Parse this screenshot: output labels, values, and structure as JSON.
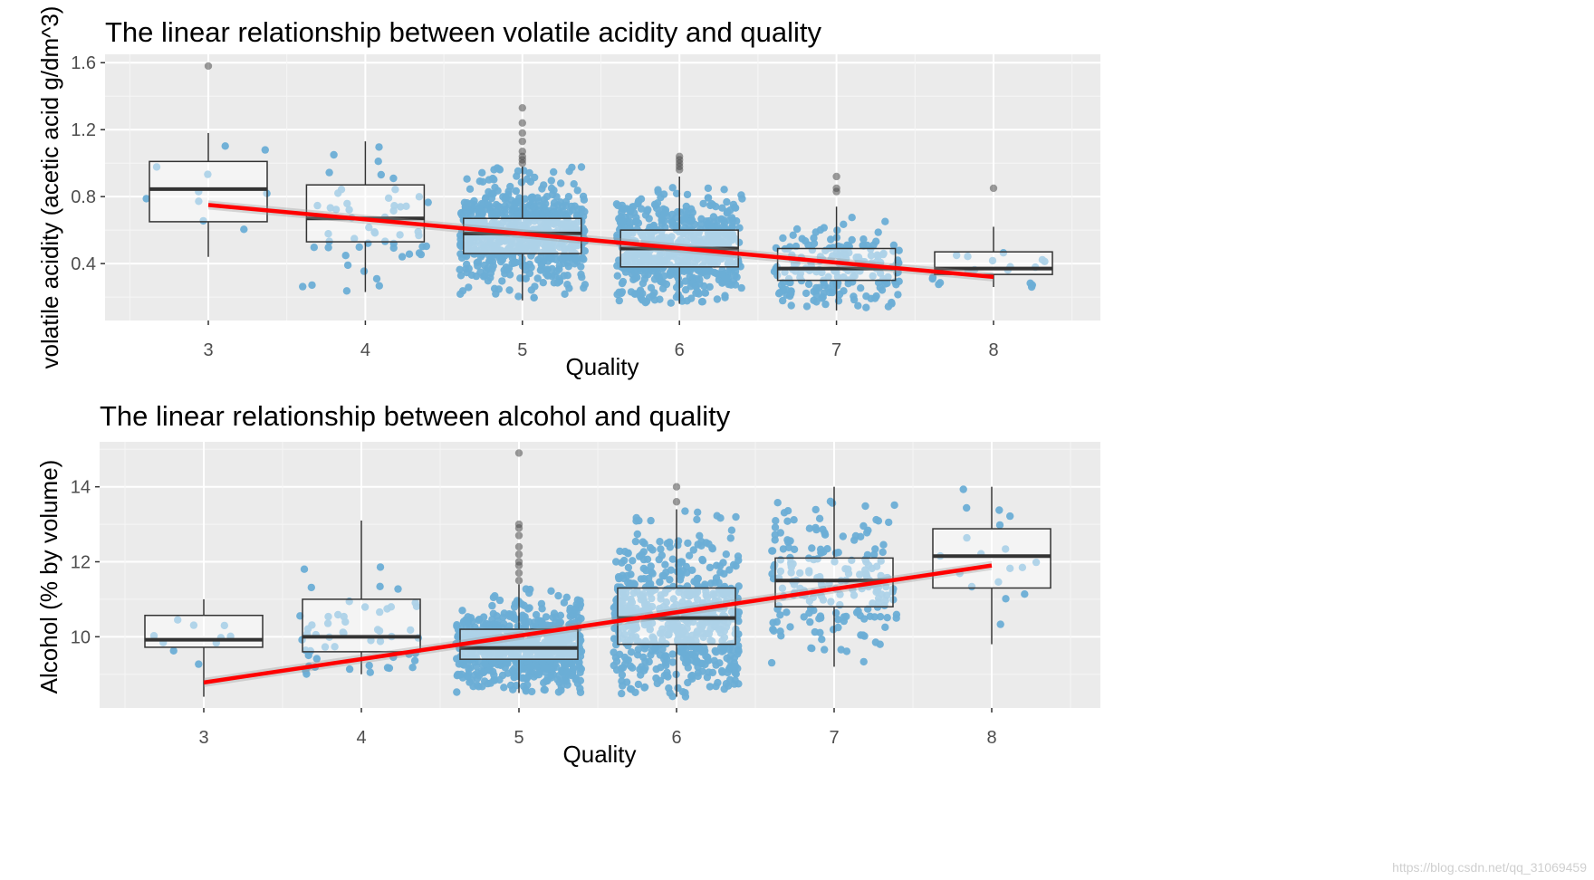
{
  "chart_data": [
    {
      "type": "boxplot_jitter",
      "title": "The linear relationship between volatile acidity and quality",
      "xlabel": "Quality",
      "ylabel": "volatile acidity (acetic acid g/dm^3)",
      "categories": [
        "3",
        "4",
        "5",
        "6",
        "7",
        "8"
      ],
      "ylim": [
        0.06,
        1.65
      ],
      "yticks": [
        0.4,
        0.8,
        1.2,
        1.6
      ],
      "box_stats": [
        {
          "q": "3",
          "min": 0.44,
          "q1": 0.65,
          "median": 0.845,
          "q3": 1.01,
          "max": 1.18,
          "outliers": [
            1.58
          ]
        },
        {
          "q": "4",
          "min": 0.23,
          "q1": 0.53,
          "median": 0.67,
          "q3": 0.87,
          "max": 1.13,
          "outliers": []
        },
        {
          "q": "5",
          "min": 0.18,
          "q1": 0.46,
          "median": 0.58,
          "q3": 0.67,
          "max": 0.98,
          "outliers": [
            1.0,
            1.02,
            1.04,
            1.07,
            1.13,
            1.18,
            1.24,
            1.33
          ]
        },
        {
          "q": "6",
          "min": 0.16,
          "q1": 0.38,
          "median": 0.49,
          "q3": 0.6,
          "max": 0.92,
          "outliers": [
            0.96,
            0.98,
            1.0,
            1.02,
            1.04
          ]
        },
        {
          "q": "7",
          "min": 0.12,
          "q1": 0.3,
          "median": 0.37,
          "q3": 0.49,
          "max": 0.74,
          "outliers": [
            0.83,
            0.85,
            0.92
          ]
        },
        {
          "q": "8",
          "min": 0.26,
          "q1": 0.335,
          "median": 0.37,
          "q3": 0.47,
          "max": 0.62,
          "outliers": [
            0.85
          ]
        }
      ],
      "jitter_counts": [
        10,
        53,
        681,
        638,
        199,
        18
      ],
      "trend_line": {
        "x": [
          3,
          8
        ],
        "y": [
          0.75,
          0.32
        ],
        "color": "#ff0000"
      },
      "point_color": "#6baed6",
      "outlier_color": "#4d4d4d"
    },
    {
      "type": "boxplot_jitter",
      "title": "The linear relationship between alcohol and quality",
      "xlabel": "Quality",
      "ylabel": "Alcohol (% by volume)",
      "categories": [
        "3",
        "4",
        "5",
        "6",
        "7",
        "8"
      ],
      "ylim": [
        8.1,
        15.2
      ],
      "yticks": [
        10,
        12,
        14
      ],
      "box_stats": [
        {
          "q": "3",
          "min": 8.4,
          "q1": 9.72,
          "median": 9.92,
          "q3": 10.57,
          "max": 11.0,
          "outliers": []
        },
        {
          "q": "4",
          "min": 9.0,
          "q1": 9.6,
          "median": 10.0,
          "q3": 11.0,
          "max": 13.1,
          "outliers": []
        },
        {
          "q": "5",
          "min": 8.5,
          "q1": 9.4,
          "median": 9.7,
          "q3": 10.2,
          "max": 11.4,
          "outliers": [
            11.5,
            11.7,
            11.9,
            12.0,
            12.2,
            12.4,
            12.7,
            12.9,
            13.0,
            14.9
          ]
        },
        {
          "q": "6",
          "min": 8.4,
          "q1": 9.8,
          "median": 10.5,
          "q3": 11.3,
          "max": 13.4,
          "outliers": [
            13.6,
            14.0
          ]
        },
        {
          "q": "7",
          "min": 9.2,
          "q1": 10.8,
          "median": 11.5,
          "q3": 12.1,
          "max": 14.0,
          "outliers": []
        },
        {
          "q": "8",
          "min": 9.8,
          "q1": 11.3,
          "median": 12.15,
          "q3": 12.88,
          "max": 14.0,
          "outliers": []
        }
      ],
      "jitter_counts": [
        10,
        53,
        681,
        638,
        199,
        18
      ],
      "trend_line": {
        "x": [
          3,
          8
        ],
        "y": [
          8.78,
          11.9
        ],
        "color": "#ff0000"
      },
      "point_color": "#6baed6",
      "outlier_color": "#4d4d4d"
    }
  ],
  "watermark": "https://blog.csdn.net/qq_31069459"
}
